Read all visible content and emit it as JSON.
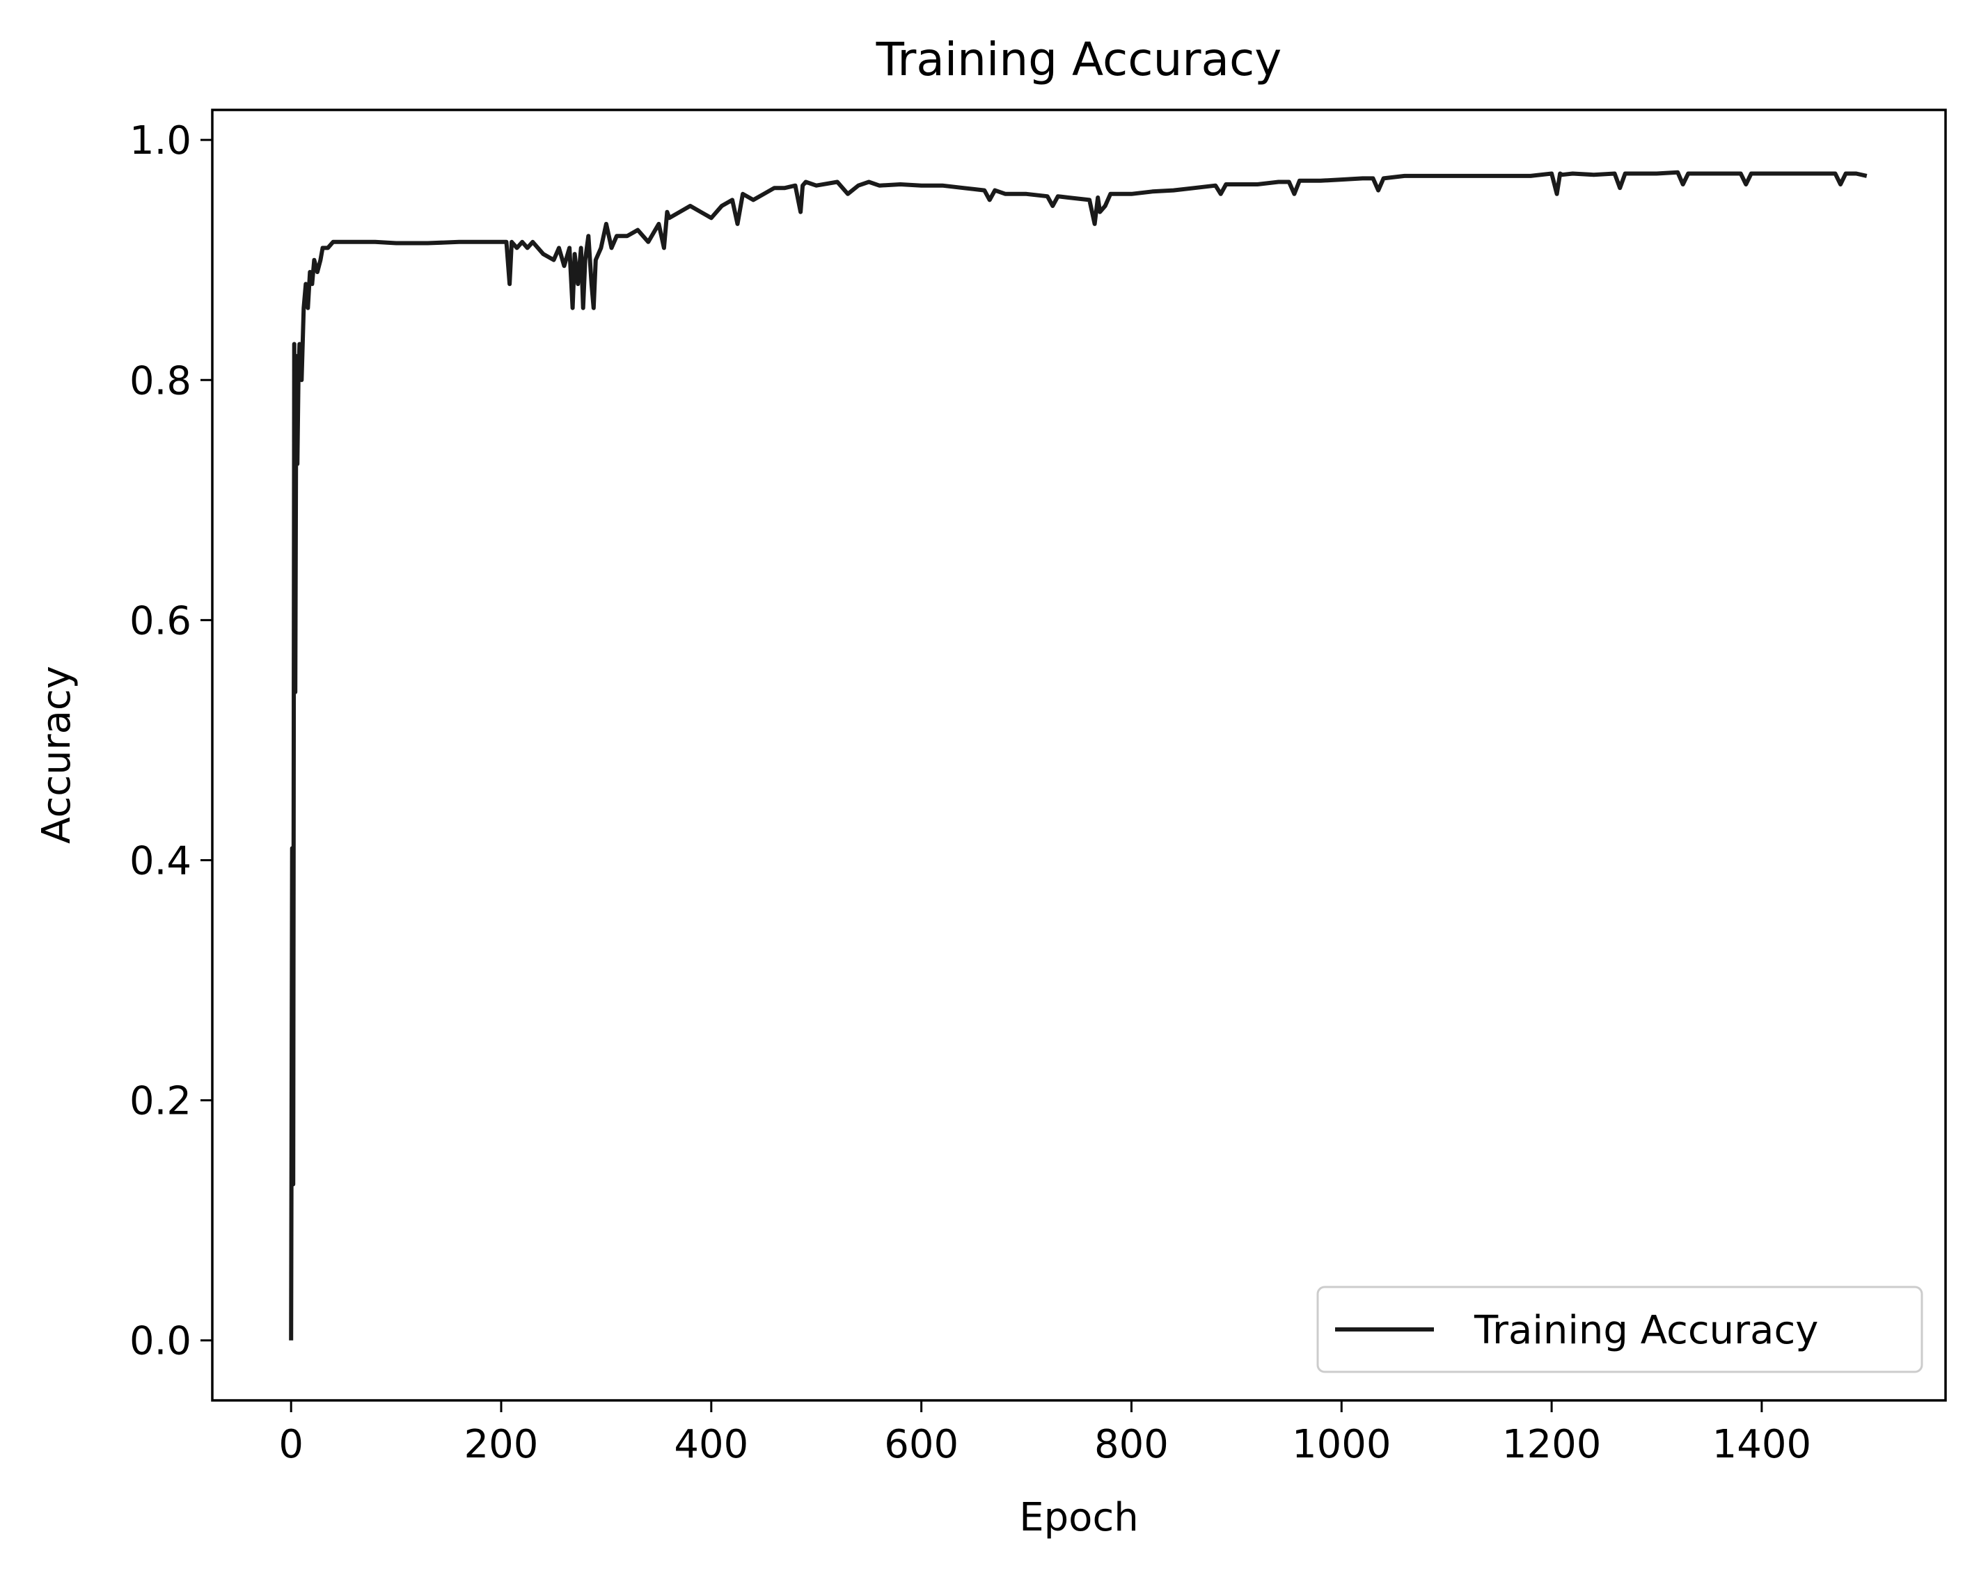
{
  "chart_data": {
    "type": "line",
    "title": "Training Accuracy",
    "xlabel": "Epoch",
    "ylabel": "Accuracy",
    "xlim": [
      -75,
      1575
    ],
    "ylim": [
      -0.05,
      1.025
    ],
    "xticks": [
      0,
      200,
      400,
      600,
      800,
      1000,
      1200,
      1400
    ],
    "yticks": [
      0.0,
      0.2,
      0.4,
      0.6,
      0.8,
      1.0
    ],
    "xtick_labels": [
      "0",
      "200",
      "400",
      "600",
      "800",
      "1000",
      "1200",
      "1400"
    ],
    "ytick_labels": [
      "0.0",
      "0.2",
      "0.4",
      "0.6",
      "0.8",
      "1.0"
    ],
    "grid": false,
    "legend_position": "lower-right",
    "series": [
      {
        "name": "Training Accuracy",
        "color": "#1a1a1a",
        "x": [
          0,
          1,
          2,
          3,
          4,
          5,
          6,
          7,
          8,
          10,
          12,
          14,
          16,
          18,
          20,
          22,
          25,
          28,
          30,
          35,
          40,
          50,
          60,
          80,
          100,
          130,
          160,
          190,
          200,
          205,
          208,
          210,
          215,
          220,
          225,
          230,
          240,
          250,
          255,
          260,
          265,
          268,
          270,
          273,
          276,
          278,
          280,
          283,
          286,
          288,
          290,
          295,
          300,
          305,
          310,
          320,
          330,
          340,
          350,
          355,
          358,
          360,
          370,
          380,
          390,
          400,
          410,
          420,
          425,
          430,
          440,
          450,
          460,
          470,
          480,
          485,
          487,
          490,
          500,
          520,
          530,
          540,
          550,
          560,
          580,
          600,
          620,
          640,
          660,
          665,
          670,
          680,
          700,
          720,
          725,
          730,
          740,
          760,
          765,
          768,
          770,
          775,
          780,
          800,
          820,
          840,
          860,
          880,
          885,
          890,
          900,
          920,
          940,
          950,
          955,
          960,
          980,
          1000,
          1020,
          1030,
          1035,
          1040,
          1060,
          1080,
          1100,
          1120,
          1140,
          1160,
          1180,
          1200,
          1205,
          1208,
          1210,
          1220,
          1240,
          1260,
          1265,
          1270,
          1280,
          1300,
          1320,
          1325,
          1330,
          1340,
          1360,
          1380,
          1385,
          1390,
          1400,
          1420,
          1440,
          1460,
          1470,
          1475,
          1480,
          1490,
          1500
        ],
        "values": [
          0.0,
          0.41,
          0.13,
          0.83,
          0.54,
          0.82,
          0.73,
          0.8,
          0.83,
          0.8,
          0.86,
          0.88,
          0.86,
          0.89,
          0.88,
          0.9,
          0.89,
          0.9,
          0.91,
          0.91,
          0.915,
          0.915,
          0.915,
          0.915,
          0.914,
          0.914,
          0.915,
          0.915,
          0.915,
          0.915,
          0.88,
          0.915,
          0.91,
          0.915,
          0.91,
          0.915,
          0.905,
          0.9,
          0.91,
          0.895,
          0.91,
          0.86,
          0.905,
          0.88,
          0.91,
          0.86,
          0.9,
          0.92,
          0.88,
          0.86,
          0.9,
          0.91,
          0.93,
          0.91,
          0.92,
          0.92,
          0.925,
          0.915,
          0.93,
          0.91,
          0.94,
          0.935,
          0.94,
          0.945,
          0.94,
          0.935,
          0.945,
          0.95,
          0.93,
          0.955,
          0.95,
          0.955,
          0.96,
          0.96,
          0.962,
          0.94,
          0.962,
          0.965,
          0.962,
          0.965,
          0.955,
          0.962,
          0.965,
          0.962,
          0.963,
          0.962,
          0.962,
          0.96,
          0.958,
          0.95,
          0.958,
          0.955,
          0.955,
          0.953,
          0.945,
          0.953,
          0.952,
          0.95,
          0.93,
          0.952,
          0.94,
          0.945,
          0.955,
          0.955,
          0.957,
          0.958,
          0.96,
          0.962,
          0.955,
          0.963,
          0.963,
          0.963,
          0.965,
          0.965,
          0.955,
          0.966,
          0.966,
          0.967,
          0.968,
          0.968,
          0.958,
          0.968,
          0.97,
          0.97,
          0.97,
          0.97,
          0.97,
          0.97,
          0.97,
          0.972,
          0.955,
          0.972,
          0.971,
          0.972,
          0.971,
          0.972,
          0.96,
          0.972,
          0.972,
          0.972,
          0.973,
          0.963,
          0.972,
          0.972,
          0.972,
          0.972,
          0.963,
          0.972,
          0.972,
          0.972,
          0.972,
          0.972,
          0.972,
          0.963,
          0.972,
          0.972,
          0.97
        ]
      }
    ]
  }
}
